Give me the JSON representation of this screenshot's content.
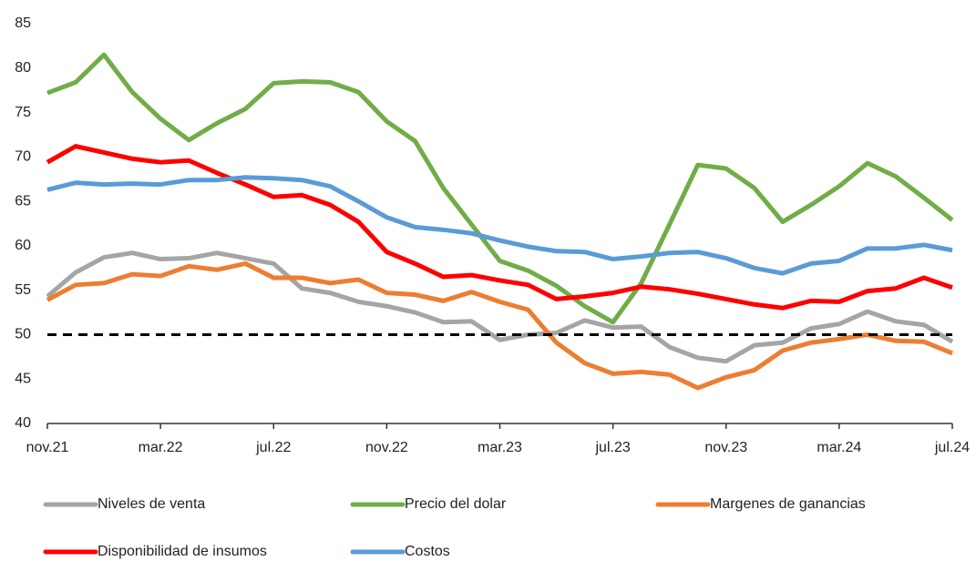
{
  "chart_data": {
    "type": "line",
    "categories": [
      "nov.21",
      null,
      null,
      null,
      "mar.22",
      null,
      null,
      null,
      "jul.22",
      null,
      null,
      null,
      "nov.22",
      null,
      null,
      null,
      "mar.23",
      null,
      null,
      null,
      "jul.23",
      null,
      null,
      null,
      "nov.23",
      null,
      null,
      null,
      "mar.24",
      null,
      null,
      null,
      "jul.24"
    ],
    "series": [
      {
        "name": "Niveles de venta",
        "color": "#a5a5a5",
        "values": [
          54.3,
          57.0,
          58.7,
          59.2,
          58.5,
          58.6,
          59.2,
          58.6,
          58.0,
          55.2,
          54.7,
          53.7,
          53.2,
          52.5,
          51.4,
          51.5,
          49.4,
          50.0,
          50.2,
          51.6,
          50.8,
          50.9,
          48.6,
          47.4,
          47.0,
          48.8,
          49.1,
          50.7,
          51.2,
          52.6,
          51.5,
          51.1,
          49.2
        ]
      },
      {
        "name": "Precio del dolar",
        "color": "#70ad47",
        "values": [
          77.2,
          78.4,
          81.5,
          77.3,
          74.3,
          71.9,
          73.8,
          75.4,
          78.3,
          78.5,
          78.4,
          77.3,
          74.0,
          71.8,
          66.5,
          62.4,
          58.3,
          57.2,
          55.5,
          53.2,
          51.4,
          55.8,
          62.4,
          69.1,
          68.7,
          66.5,
          62.7,
          64.6,
          66.7,
          69.3,
          67.8,
          65.4,
          62.9
        ]
      },
      {
        "name": "Margenes de ganancias",
        "color": "#ed7d31",
        "values": [
          53.9,
          55.6,
          55.8,
          56.8,
          56.6,
          57.7,
          57.3,
          58.0,
          56.4,
          56.4,
          55.8,
          56.2,
          54.7,
          54.5,
          53.8,
          54.8,
          53.7,
          52.8,
          49.1,
          46.8,
          45.6,
          45.8,
          45.5,
          44.0,
          45.2,
          46.0,
          48.2,
          49.1,
          49.5,
          50.0,
          49.3,
          49.2,
          47.9
        ]
      },
      {
        "name": "Disponibilidad de insumos",
        "color": "#ff0000",
        "values": [
          69.4,
          71.2,
          70.5,
          69.8,
          69.4,
          69.6,
          68.2,
          66.9,
          65.5,
          65.7,
          64.6,
          62.7,
          59.3,
          58.0,
          56.5,
          56.7,
          56.1,
          55.6,
          54.0,
          54.3,
          54.7,
          55.4,
          55.1,
          54.6,
          54.0,
          53.4,
          53.0,
          53.8,
          53.7,
          54.9,
          55.2,
          56.4,
          55.3
        ]
      },
      {
        "name": "Costos",
        "color": "#5b9bd5",
        "values": [
          66.3,
          67.1,
          66.9,
          67.0,
          66.9,
          67.4,
          67.4,
          67.7,
          67.6,
          67.4,
          66.7,
          65.0,
          63.2,
          62.1,
          61.8,
          61.4,
          60.6,
          59.9,
          59.4,
          59.3,
          58.5,
          58.8,
          59.2,
          59.3,
          58.6,
          57.5,
          56.9,
          58.0,
          58.3,
          59.7,
          59.7,
          60.1,
          59.5
        ]
      }
    ],
    "reference_line": 50,
    "ylim": [
      40,
      85
    ],
    "yticks": [
      40,
      45,
      50,
      55,
      60,
      65,
      70,
      75,
      80,
      85
    ]
  }
}
